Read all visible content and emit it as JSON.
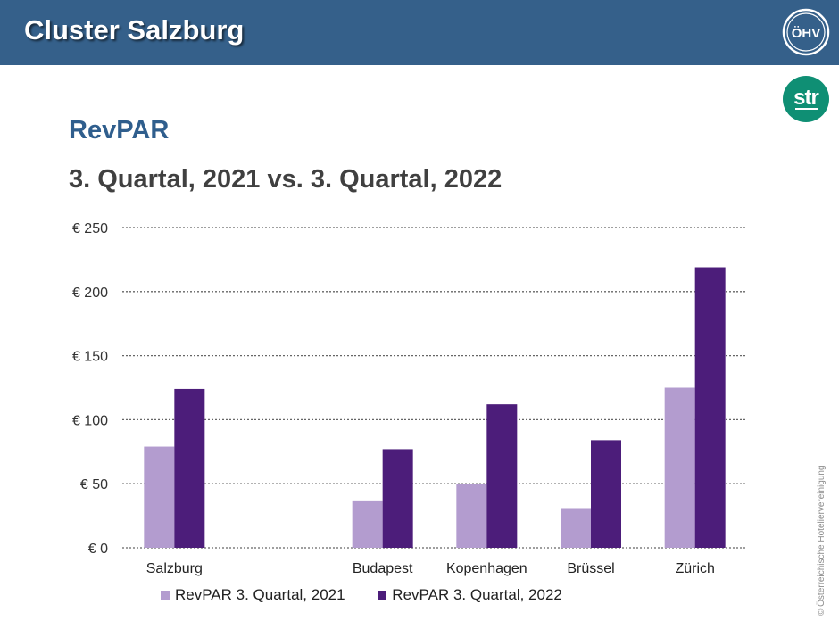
{
  "header": {
    "title": "Cluster Salzburg",
    "logo_text": "ÖHV"
  },
  "str_logo": {
    "text": "str"
  },
  "metric_title": "RevPAR",
  "subtitle": "3. Quartal, 2021 vs. 3. Quartal, 2022",
  "chart_data": {
    "type": "bar",
    "categories": [
      "Salzburg",
      "",
      "Budapest",
      "Kopenhagen",
      "Brüssel",
      "Zürich"
    ],
    "series": [
      {
        "name": "RevPAR 3. Quartal, 2021",
        "color": "#b39ccf",
        "values": [
          79,
          null,
          37,
          50,
          31,
          125
        ]
      },
      {
        "name": "RevPAR 3. Quartal, 2022",
        "color": "#4c1d7a",
        "values": [
          124,
          null,
          77,
          112,
          84,
          219
        ]
      }
    ],
    "ylim": [
      0,
      250
    ],
    "y_ticks": [
      0,
      50,
      100,
      150,
      200,
      250
    ],
    "y_tick_labels": [
      "€ 0",
      "€ 50",
      "€ 100",
      "€ 150",
      "€ 200",
      "€ 250"
    ],
    "grid": true,
    "grid_style": "dotted",
    "legend_position": "bottom"
  },
  "copyright": "© Österreichische Hoteliervereinigung"
}
